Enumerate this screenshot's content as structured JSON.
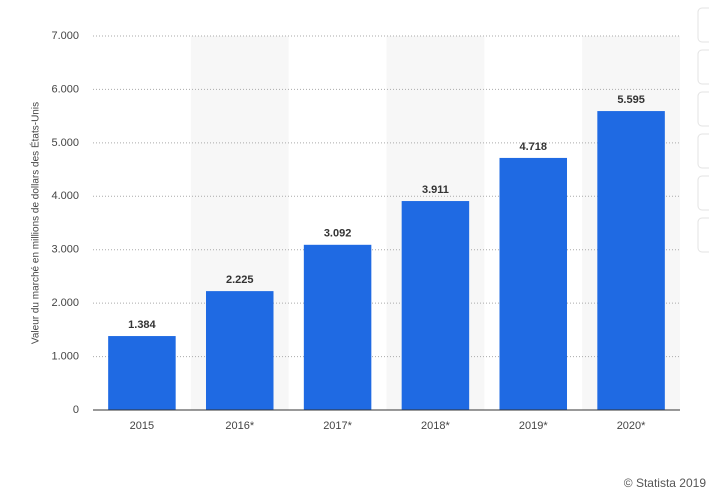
{
  "chart_data": {
    "type": "bar",
    "y_label": "Valeur du marché en millions de dollars des États-Unis",
    "categories": [
      "2015",
      "2016*",
      "2017*",
      "2018*",
      "2019*",
      "2020*"
    ],
    "values": [
      1384,
      2225,
      3092,
      3911,
      4718,
      5595
    ],
    "value_labels": [
      "1.384",
      "2.225",
      "3.092",
      "3.911",
      "4.718",
      "5.595"
    ],
    "color": "#1f6ae3",
    "ylim": [
      0,
      7000
    ],
    "yticks": [
      0,
      {
        "value": 1000,
        "label": "1.000"
      },
      {
        "value": 2000,
        "label": "2.000"
      },
      {
        "value": 3000,
        "label": "3.000"
      },
      {
        "value": 4000,
        "label": "4.000"
      },
      {
        "value": 5000,
        "label": "5.000"
      },
      {
        "value": 6000,
        "label": "6.000"
      },
      {
        "value": 7000,
        "label": "7.000"
      }
    ],
    "grid": true,
    "credit": "© Statista 2019"
  }
}
